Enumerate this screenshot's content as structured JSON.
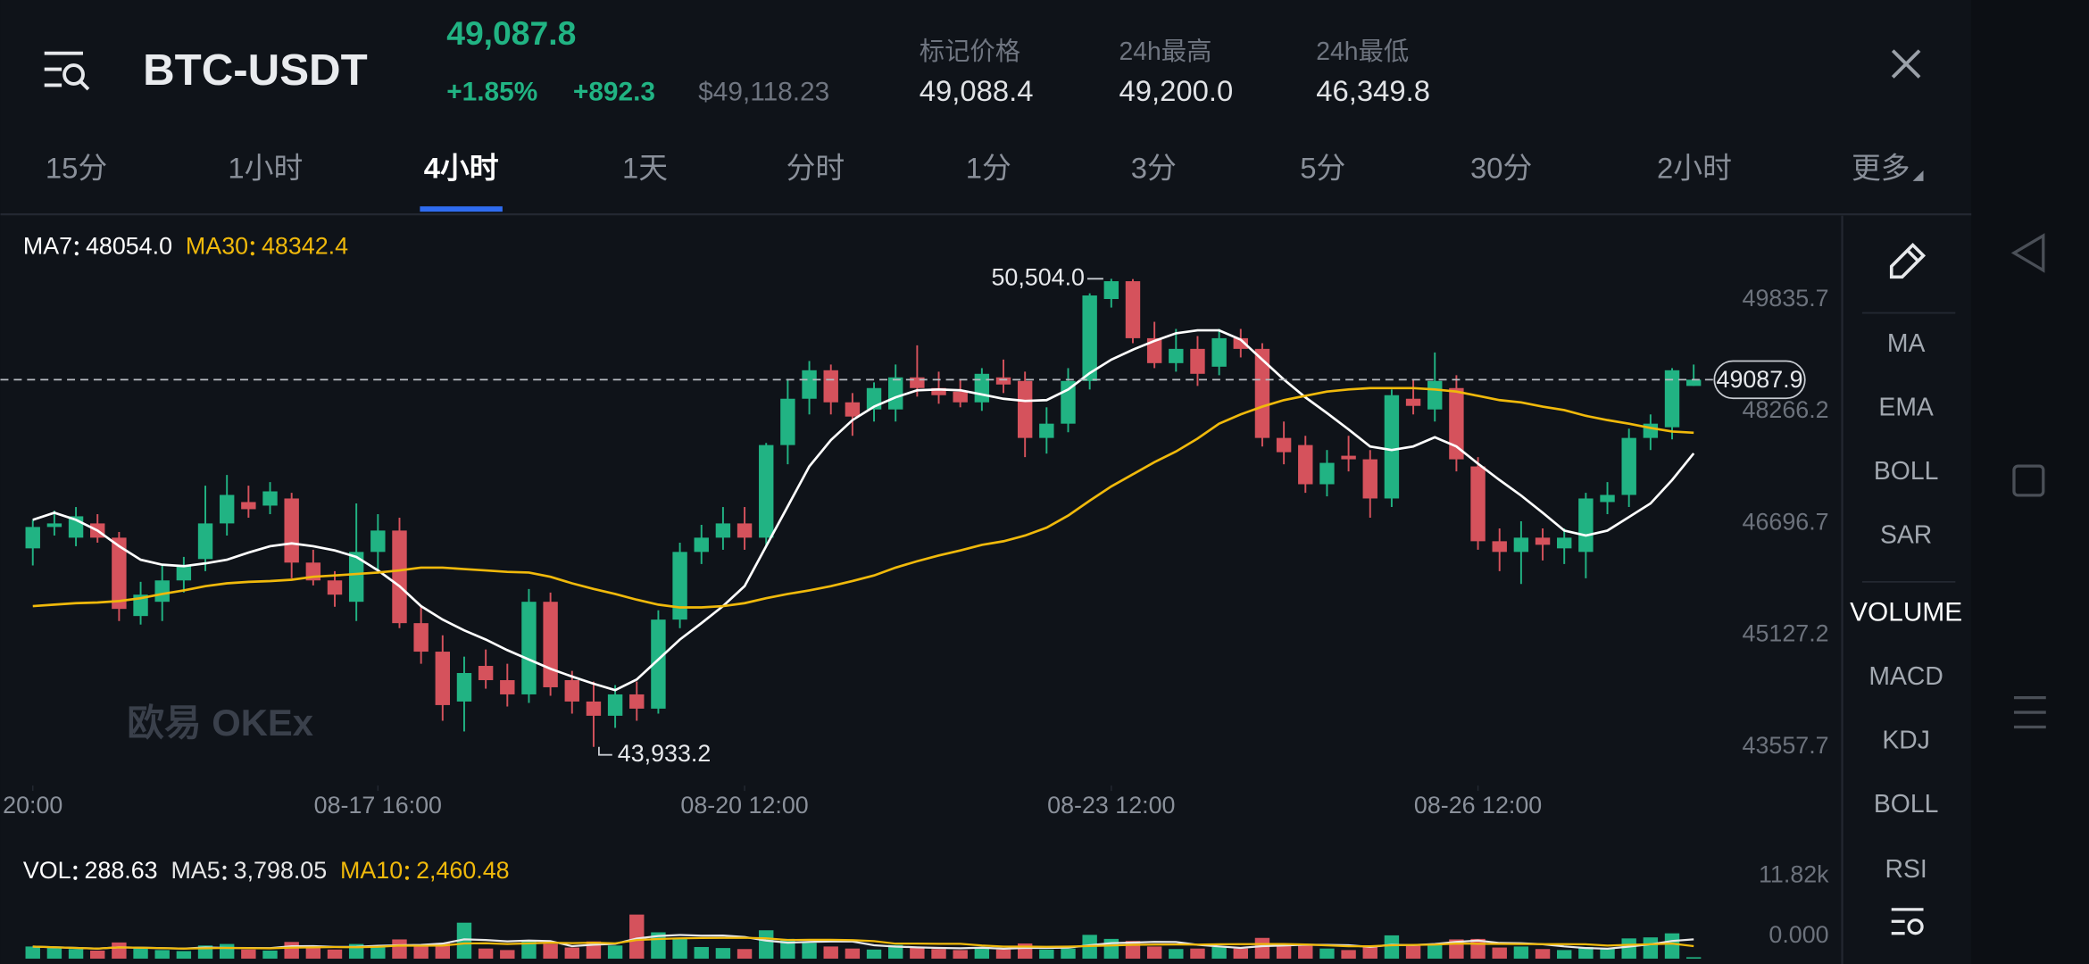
{
  "header": {
    "pair": "BTC-USDT",
    "last": "49,087.8",
    "change_pct": "+1.85%",
    "change": "+892.3",
    "usd": "$49,118.23",
    "stats": [
      {
        "label": "标记价格",
        "value": "49,088.4"
      },
      {
        "label": "24h最高",
        "value": "49,200.0"
      },
      {
        "label": "24h最低",
        "value": "46,349.8"
      }
    ]
  },
  "tabs": [
    "15分",
    "1小时",
    "4小时",
    "1天",
    "分时",
    "1分",
    "3分",
    "5分",
    "30分",
    "2小时",
    "更多"
  ],
  "active_tab": 2,
  "indicators": [
    "MA",
    "EMA",
    "BOLL",
    "SAR",
    "VOLUME",
    "MACD",
    "KDJ",
    "BOLL",
    "RSI"
  ],
  "active_indicator": 4,
  "watermark": "欧易 OKEx",
  "chart_data": [
    {
      "type": "candlestick",
      "up_color": "#21b383",
      "down_color": "#d5525c",
      "xlim": [
        -1.5,
        83.7
      ],
      "ylim": [
        43390,
        51240
      ],
      "yticks": [
        49835.7,
        48266.2,
        46696.7,
        45127.2,
        43557.7
      ],
      "xticks": [
        {
          "value": 0,
          "label": "20:00"
        },
        {
          "value": 16,
          "label": "08-17 16:00"
        },
        {
          "value": 33,
          "label": "08-20 12:00"
        },
        {
          "value": 50,
          "label": "08-23 12:00"
        },
        {
          "value": 67,
          "label": "08-26 12:00"
        }
      ],
      "grid": false,
      "current_price": 49087.9,
      "high_label": {
        "index": 50,
        "label": "50,504.0"
      },
      "low_label": {
        "index": 26,
        "label": "43,933.2"
      },
      "open": [
        46720,
        47020,
        46870,
        47070,
        46870,
        45770,
        45970,
        46270,
        46570,
        47070,
        47370,
        47320,
        47420,
        46520,
        46270,
        45970,
        46670,
        46970,
        45670,
        45270,
        44570,
        45070,
        44870,
        44670,
        45970,
        44870,
        44570,
        44370,
        44670,
        44470,
        45720,
        46670,
        46870,
        47070,
        46870,
        48170,
        48820,
        49220,
        48770,
        48670,
        48670,
        49120,
        48970,
        48920,
        48770,
        49120,
        49070,
        48270,
        48470,
        49070,
        50220,
        50470,
        49670,
        49320,
        49520,
        49270,
        49670,
        49520,
        48270,
        48170,
        47620,
        48020,
        47970,
        47420,
        48820,
        48670,
        48970,
        47870,
        46820,
        46670,
        46870,
        46720,
        46670,
        47370,
        47470,
        48270,
        48420,
        49000
      ],
      "high": [
        47120,
        47250,
        47300,
        47200,
        46950,
        46250,
        46500,
        46600,
        47600,
        47750,
        47600,
        47650,
        47500,
        46700,
        46400,
        47350,
        47200,
        47150,
        45900,
        45500,
        45200,
        45300,
        45100,
        46150,
        46100,
        45000,
        44850,
        44800,
        44850,
        45850,
        46800,
        47050,
        47300,
        47300,
        48200,
        49100,
        49350,
        49300,
        48900,
        49050,
        49300,
        49570,
        49200,
        49100,
        49250,
        49370,
        49200,
        48700,
        49250,
        50300,
        50504.0,
        50500,
        49900,
        49800,
        49700,
        49800,
        49800,
        49600,
        48500,
        48300,
        48100,
        48300,
        48100,
        48950,
        49100,
        49470,
        49150,
        48000,
        47000,
        47100,
        47000,
        47000,
        47500,
        47650,
        48400,
        48600,
        49250,
        49300
      ],
      "low": [
        46480,
        46900,
        46750,
        46800,
        45700,
        45650,
        45700,
        46100,
        46400,
        46900,
        47150,
        47200,
        46300,
        46200,
        45900,
        45700,
        46400,
        45600,
        45100,
        44300,
        44150,
        44750,
        44500,
        44550,
        44650,
        44400,
        43933.2,
        44200,
        44300,
        44400,
        45600,
        46500,
        46700,
        46700,
        46750,
        47900,
        48600,
        48600,
        48300,
        48500,
        48500,
        48850,
        48750,
        48700,
        48650,
        48900,
        48000,
        48050,
        48350,
        48950,
        50100,
        49600,
        49250,
        49200,
        49000,
        49150,
        49400,
        48150,
        47900,
        47500,
        47450,
        47800,
        47150,
        47300,
        48600,
        48500,
        47800,
        46700,
        46400,
        46220,
        46550,
        46500,
        46300,
        47200,
        47300,
        48100,
        48250,
        49000
      ],
      "close": [
        47020,
        47070,
        47170,
        46870,
        45870,
        46070,
        46270,
        46470,
        47070,
        47470,
        47270,
        47520,
        46520,
        46270,
        46070,
        46670,
        46970,
        45670,
        45270,
        44520,
        44970,
        44870,
        44670,
        45970,
        44770,
        44570,
        44370,
        44670,
        44470,
        45720,
        46670,
        46870,
        47070,
        46870,
        48170,
        48820,
        49220,
        48770,
        48570,
        48970,
        49120,
        48970,
        48870,
        48770,
        49170,
        49020,
        48270,
        48470,
        49070,
        50270,
        50470,
        49670,
        49320,
        49520,
        49170,
        49670,
        49520,
        48270,
        48070,
        47620,
        47920,
        47970,
        47420,
        48870,
        48720,
        49070,
        47970,
        46820,
        46670,
        46870,
        46770,
        46870,
        47420,
        47470,
        48270,
        48470,
        49220,
        49087.9
      ],
      "series": [
        {
          "name": "MA7",
          "legend_value": "48054.0",
          "color": "#ffffff",
          "values": [
            47120,
            47220,
            47120,
            46970,
            46750,
            46560,
            46490,
            46470,
            46510,
            46560,
            46660,
            46750,
            46790,
            46750,
            46690,
            46600,
            46410,
            46190,
            45910,
            45720,
            45570,
            45440,
            45290,
            45160,
            45030,
            44920,
            44820,
            44730,
            44880,
            45160,
            45440,
            45670,
            45910,
            46190,
            46750,
            47310,
            47870,
            48240,
            48520,
            48710,
            48840,
            48940,
            48950,
            48940,
            48880,
            48820,
            48790,
            48800,
            48950,
            49180,
            49370,
            49510,
            49630,
            49740,
            49780,
            49780,
            49650,
            49370,
            49090,
            48840,
            48620,
            48390,
            48150,
            48100,
            48150,
            48280,
            48150,
            47910,
            47680,
            47460,
            47220,
            46970,
            46900,
            46970,
            47160,
            47350,
            47680,
            48054.0
          ]
        },
        {
          "name": "MA30",
          "legend_value": "48342.4",
          "color": "#f0b90b",
          "values": [
            45910,
            45930,
            45950,
            45960,
            45980,
            46020,
            46080,
            46130,
            46190,
            46230,
            46250,
            46260,
            46280,
            46320,
            46340,
            46360,
            46380,
            46410,
            46450,
            46450,
            46430,
            46410,
            46390,
            46380,
            46320,
            46230,
            46150,
            46080,
            46000,
            45930,
            45890,
            45890,
            45910,
            45950,
            46020,
            46080,
            46130,
            46190,
            46260,
            46340,
            46450,
            46540,
            46620,
            46690,
            46770,
            46820,
            46900,
            47010,
            47180,
            47390,
            47590,
            47760,
            47930,
            48080,
            48260,
            48470,
            48600,
            48710,
            48800,
            48860,
            48920,
            48950,
            48970,
            48970,
            48970,
            48950,
            48920,
            48860,
            48800,
            48770,
            48710,
            48660,
            48580,
            48520,
            48470,
            48410,
            48360,
            48342.4
          ]
        }
      ]
    },
    {
      "type": "bar",
      "name": "VOL",
      "legend_value": "288.63",
      "color": "#ffffff",
      "ylim": [
        0,
        11820
      ],
      "yticks": [
        {
          "value": 11820,
          "label": "11.82k"
        },
        {
          "value": 0,
          "label": "0.000"
        }
      ],
      "values": [
        2400,
        2100,
        1900,
        1600,
        3200,
        2000,
        1700,
        1500,
        2600,
        2900,
        1800,
        1600,
        3300,
        2100,
        1800,
        2900,
        2600,
        3800,
        2400,
        3100,
        7100,
        2000,
        1700,
        3600,
        2900,
        2200,
        3400,
        2600,
        8700,
        5200,
        3900,
        2300,
        2100,
        1900,
        5600,
        3900,
        3100,
        2400,
        2000,
        1800,
        2700,
        2200,
        1900,
        1700,
        2300,
        1800,
        3000,
        1800,
        2000,
        4700,
        3900,
        3500,
        2400,
        1900,
        2000,
        2300,
        2000,
        4100,
        2600,
        2800,
        2000,
        1700,
        2500,
        4600,
        2600,
        3000,
        3800,
        3900,
        2200,
        2400,
        1900,
        1700,
        2300,
        2000,
        4000,
        4200,
        5000,
        288.63
      ],
      "series": [
        {
          "name": "MA5",
          "legend_value": "3,798.05",
          "color": "#e8e8e8",
          "values": [
            2400,
            2250,
            2130,
            2000,
            2240,
            2160,
            2080,
            2000,
            2200,
            2140,
            2100,
            2080,
            2440,
            2460,
            2320,
            2340,
            2540,
            2660,
            2700,
            2960,
            3800,
            3680,
            3420,
            3580,
            3460,
            2480,
            2760,
            2940,
            3960,
            4460,
            4680,
            4540,
            4580,
            4280,
            3560,
            3160,
            3320,
            3380,
            3400,
            2640,
            2400,
            2220,
            2120,
            2060,
            2160,
            1980,
            2140,
            2120,
            2180,
            2660,
            3080,
            3180,
            3300,
            3280,
            2740,
            2420,
            2120,
            2460,
            2600,
            2760,
            2700,
            2640,
            2320,
            2720,
            2680,
            2880,
            3300,
            3580,
            3100,
            3060,
            2840,
            2420,
            2100,
            1980,
            2380,
            2840,
            3500,
            3798.05
          ]
        },
        {
          "name": "MA10",
          "legend_value": "2,460.48",
          "color": "#f0b90b",
          "values": [
            2400,
            2250,
            2130,
            2000,
            2240,
            2160,
            2080,
            2000,
            2060,
            2140,
            2080,
            2030,
            2170,
            2220,
            2280,
            2260,
            2350,
            2580,
            2560,
            2580,
            3000,
            3040,
            2880,
            3030,
            3140,
            3070,
            3150,
            3030,
            3670,
            3880,
            4030,
            4060,
            4100,
            4120,
            4010,
            3690,
            3740,
            3720,
            3640,
            3460,
            2980,
            2970,
            2950,
            2930,
            2600,
            2390,
            2380,
            2350,
            2380,
            2490,
            2610,
            2740,
            2790,
            2810,
            2780,
            2830,
            2850,
            2890,
            2890,
            2810,
            2620,
            2440,
            2450,
            2640,
            2700,
            2780,
            2960,
            2950,
            2920,
            2880,
            2870,
            2860,
            2840,
            2580,
            2720,
            2840,
            2960,
            2460.48
          ]
        }
      ]
    }
  ]
}
